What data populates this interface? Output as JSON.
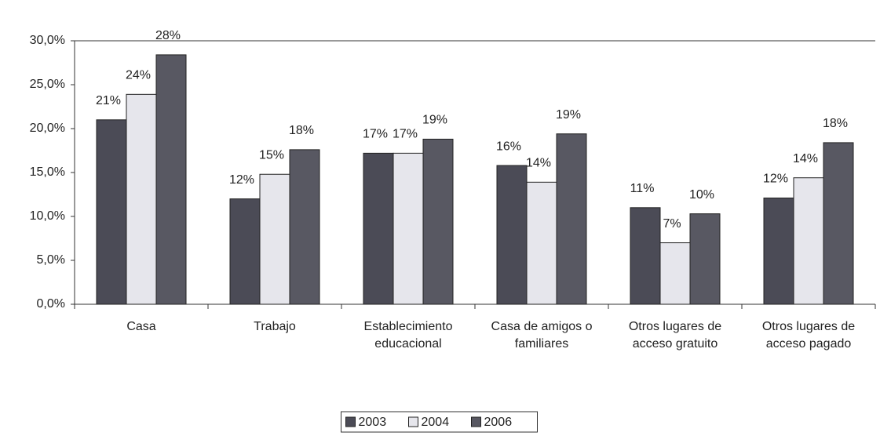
{
  "chart_data": {
    "type": "bar",
    "categories": [
      "Casa",
      "Trabajo",
      "Establecimiento educacional",
      "Casa de amigos o familiares",
      "Otros lugares de acceso gratuito",
      "Otros lugares de acceso pagado"
    ],
    "series": [
      {
        "name": "2003",
        "color": "#4b4b56",
        "values": [
          21.0,
          12.0,
          17.2,
          15.8,
          11.0,
          12.1
        ],
        "value_labels": [
          "21%",
          "12%",
          "17%",
          "16%",
          "11%",
          "12%"
        ]
      },
      {
        "name": "2004",
        "color": "#e6e6ec",
        "values": [
          23.9,
          14.8,
          17.2,
          13.9,
          7.0,
          14.4
        ],
        "value_labels": [
          "24%",
          "15%",
          "17%",
          "14%",
          "7%",
          "14%"
        ]
      },
      {
        "name": "2006",
        "color": "#585862",
        "values": [
          28.4,
          17.6,
          18.8,
          19.4,
          10.3,
          18.4
        ],
        "value_labels": [
          "28%",
          "18%",
          "19%",
          "19%",
          "10%",
          "18%"
        ]
      }
    ],
    "ylim": [
      0,
      30
    ],
    "yticks": [
      {
        "value": 0,
        "label": "0,0%"
      },
      {
        "value": 5,
        "label": "5,0%"
      },
      {
        "value": 10,
        "label": "10,0%"
      },
      {
        "value": 15,
        "label": "15,0%"
      },
      {
        "value": 20,
        "label": "20,0%"
      },
      {
        "value": 25,
        "label": "25,0%"
      },
      {
        "value": 30,
        "label": "30,0%"
      }
    ],
    "legend": "bottom"
  }
}
